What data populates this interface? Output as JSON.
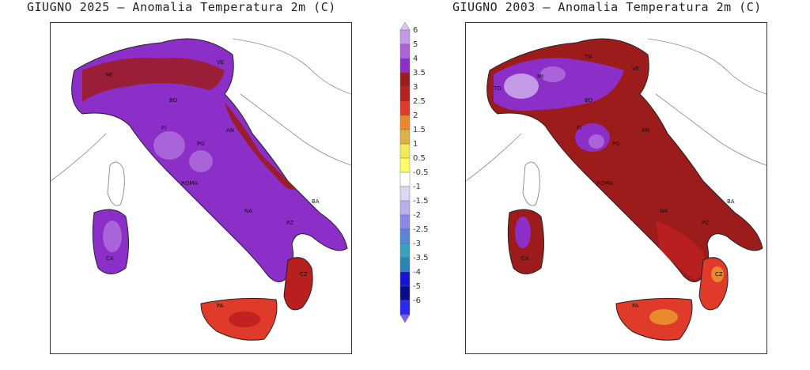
{
  "maps": [
    {
      "id": "left",
      "title": "GIUGNO 2025 – Anomalia Temperatura 2m (C)"
    },
    {
      "id": "right",
      "title": "GIUGNO 2003 – Anomalia Temperatura 2m (C)"
    }
  ],
  "region_labels": {
    "left": [
      "MI",
      "VE",
      "BO",
      "AN",
      "FI",
      "PG",
      "ROMA",
      "NA",
      "BA",
      "PZ",
      "CA",
      "CZ",
      "PA"
    ],
    "right": [
      "TO",
      "MI",
      "TN",
      "BO",
      "VE",
      "AN",
      "FI",
      "PG",
      "ROMA",
      "NA",
      "BA",
      "PZ",
      "CA",
      "CZ",
      "PA"
    ]
  },
  "colorbar": {
    "labels": [
      "6",
      "5",
      "4",
      "3.5",
      "3",
      "2.5",
      "2",
      "1.5",
      "1",
      "0.5",
      "-0.5",
      "-1",
      "-1.5",
      "-2",
      "-2.5",
      "-3",
      "-3.5",
      "-4",
      "-5",
      "-6"
    ],
    "colors": [
      "#e0c8f0",
      "#c49ae6",
      "#a864d8",
      "#8c2ec8",
      "#9c1c1c",
      "#b81f1f",
      "#e03a2a",
      "#e8892e",
      "#e0b048",
      "#f4ea58",
      "#ffff66",
      "#ffffff",
      "#dcd8f4",
      "#b8b0ec",
      "#8c86e4",
      "#5a84d8",
      "#3aa0c0",
      "#2a84b4",
      "#1414d8",
      "#0a0a8c",
      "#2828f0",
      "#8a5af0"
    ]
  },
  "legend_meaning": "temperature anomaly in degrees C"
}
